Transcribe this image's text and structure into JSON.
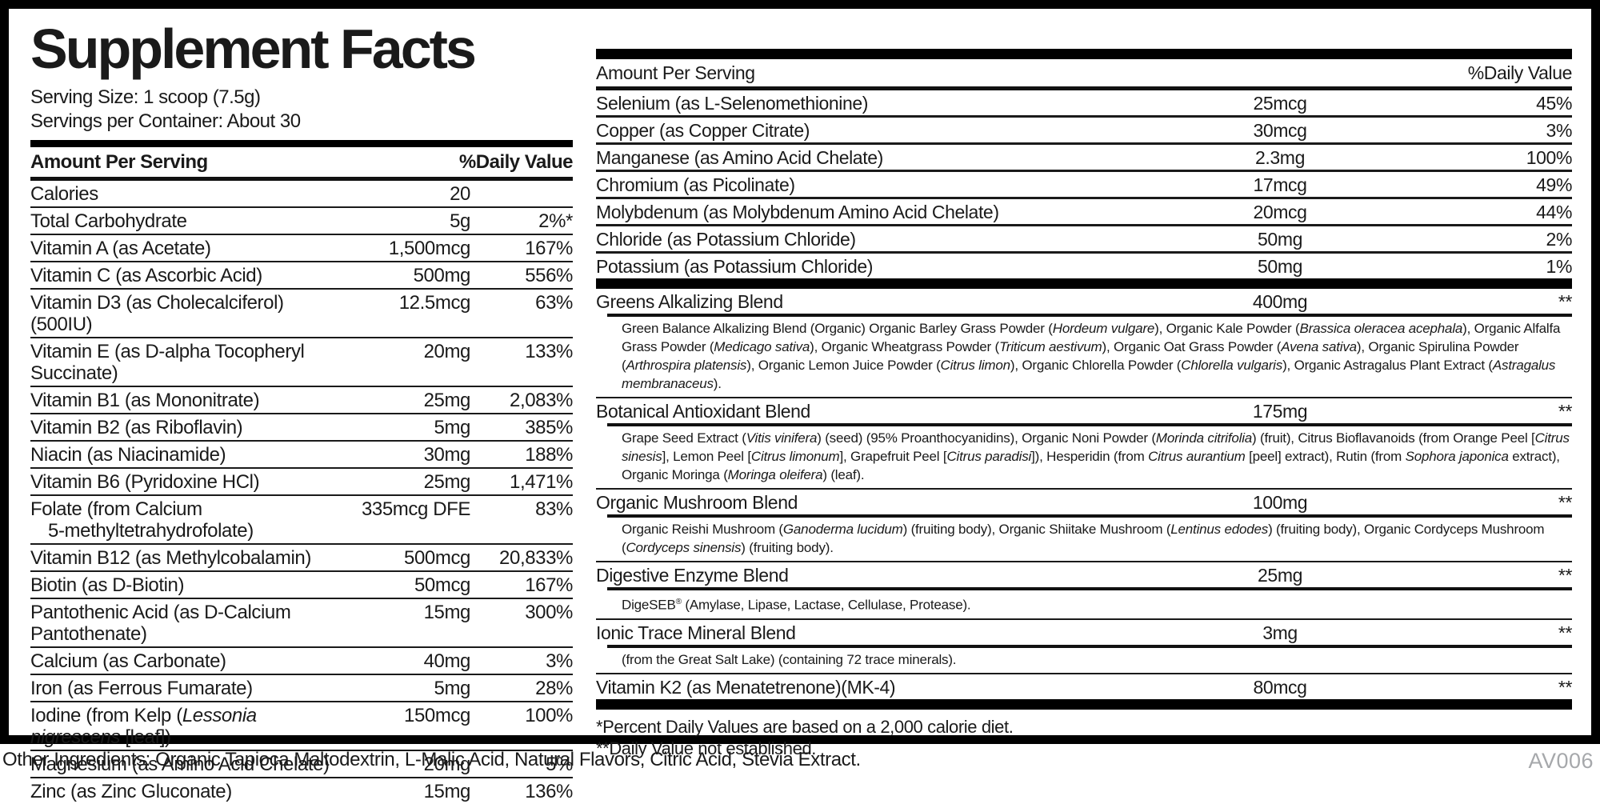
{
  "colors": {
    "ink": "#1a1a1a",
    "bar": "#000000",
    "code_gray": "#a6a8ab"
  },
  "label": {
    "title": "Supplement Facts",
    "serving_size": "Serving Size: 1 scoop (7.5g)",
    "servings_per_container": "Servings per Container: About 30",
    "header_amount": "Amount Per Serving",
    "header_dv": "%Daily Value"
  },
  "left_table": {
    "rows": [
      {
        "name": "Calories",
        "amount": "20",
        "dv": ""
      },
      {
        "name": "Total Carbohydrate",
        "amount": "5g",
        "dv": "2%*"
      },
      {
        "name": "Vitamin A (as Acetate)",
        "amount": "1,500mcg",
        "dv": "167%"
      },
      {
        "name": "Vitamin C (as Ascorbic Acid)",
        "amount": "500mg",
        "dv": "556%"
      },
      {
        "name": "Vitamin D3 (as Cholecalciferol)(500IU)",
        "amount": "12.5mcg",
        "dv": "63%"
      },
      {
        "name": "Vitamin E (as D-alpha Tocopheryl Succinate)",
        "amount": "20mg",
        "dv": "133%"
      },
      {
        "name": "Vitamin B1 (as Mononitrate)",
        "amount": "25mg",
        "dv": "2,083%"
      },
      {
        "name": "Vitamin B2 (as Riboflavin)",
        "amount": "5mg",
        "dv": "385%"
      },
      {
        "name": "Niacin (as Niacinamide)",
        "amount": "30mg",
        "dv": "188%"
      },
      {
        "name": "Vitamin B6 (Pyridoxine HCl)",
        "amount": "25mg",
        "dv": "1,471%"
      },
      {
        "name": "Folate (from Calcium",
        "name2": "5-methyltetrahydrofolate)",
        "amount": "335mcg DFE",
        "dv": "83%"
      },
      {
        "name": "Vitamin B12 (as Methylcobalamin)",
        "amount": "500mcg",
        "dv": "20,833%"
      },
      {
        "name": "Biotin (as D-Biotin)",
        "amount": "50mcg",
        "dv": "167%"
      },
      {
        "name": "Pantothenic Acid (as D-Calcium Pantothenate)",
        "amount": "15mg",
        "dv": "300%"
      },
      {
        "name": "Calcium (as Carbonate)",
        "amount": "40mg",
        "dv": "3%"
      },
      {
        "name": "Iron (as Ferrous Fumarate)",
        "amount": "5mg",
        "dv": "28%"
      },
      {
        "name_rich": [
          [
            "Iodine (from Kelp (",
            0
          ],
          [
            "Lessonia nigrescens",
            1
          ],
          [
            " [leaf])",
            0
          ]
        ],
        "amount": "150mcg",
        "dv": "100%"
      },
      {
        "name": "Magnesium (as Amino Acid Chelate)",
        "amount": "20mg",
        "dv": "5%"
      },
      {
        "name": "Zinc (as Zinc Gluconate)",
        "amount": "15mg",
        "dv": "136%"
      }
    ]
  },
  "right_table": {
    "mineral_rows": [
      {
        "name": "Selenium (as L-Selenomethionine)",
        "amount": "25mcg",
        "dv": "45%"
      },
      {
        "name": "Copper (as Copper Citrate)",
        "amount": "30mcg",
        "dv": "3%"
      },
      {
        "name": "Manganese (as Amino Acid Chelate)",
        "amount": "2.3mg",
        "dv": "100%"
      },
      {
        "name": "Chromium (as Picolinate)",
        "amount": "17mcg",
        "dv": "49%"
      },
      {
        "name": "Molybdenum (as Molybdenum Amino Acid Chelate)",
        "amount": "20mcg",
        "dv": "44%"
      },
      {
        "name": "Chloride (as Potassium Chloride)",
        "amount": "50mg",
        "dv": "2%"
      },
      {
        "name": "Potassium (as Potassium Chloride)",
        "amount": "50mg",
        "dv": "1%"
      }
    ],
    "blends": [
      {
        "name": "Greens Alkalizing Blend",
        "amount": "400mg",
        "dv": "**",
        "desc": [
          [
            "Green Balance Alkalizing Blend (Organic) Organic Barley Grass Powder (",
            0
          ],
          [
            "Hordeum vulgare",
            1
          ],
          [
            "), Organic Kale Powder (",
            0
          ],
          [
            "Brassica oleracea acephala",
            1
          ],
          [
            "), Organic Alfalfa Grass Powder (",
            0
          ],
          [
            "Medicago sativa",
            1
          ],
          [
            "), Organic Wheatgrass Powder (",
            0
          ],
          [
            "Triticum aestivum",
            1
          ],
          [
            "), Organic Oat Grass Powder (",
            0
          ],
          [
            "Avena sativa",
            1
          ],
          [
            "), Organic Spirulina Powder (",
            0
          ],
          [
            "Arthrospira platensis",
            1
          ],
          [
            "), Organic Lemon Juice Powder (",
            0
          ],
          [
            "Citrus limon",
            1
          ],
          [
            "), Organic Chlorella Powder (",
            0
          ],
          [
            "Chlorella vulgaris",
            1
          ],
          [
            "), Organic Astragalus Plant Extract (",
            0
          ],
          [
            "Astragalus membranaceus",
            1
          ],
          [
            ").",
            0
          ]
        ]
      },
      {
        "name": "Botanical Antioxidant Blend",
        "amount": "175mg",
        "dv": "**",
        "desc": [
          [
            "Grape Seed Extract (",
            0
          ],
          [
            "Vitis vinifera",
            1
          ],
          [
            ") (seed) (95% Proanthocyanidins), Organic Noni Powder (",
            0
          ],
          [
            "Morinda citrifolia",
            1
          ],
          [
            ") (fruit), Citrus Bioflavanoids (from Orange Peel [",
            0
          ],
          [
            "Citrus sinesis",
            1
          ],
          [
            "], Lemon Peel [",
            0
          ],
          [
            "Citrus limonum",
            1
          ],
          [
            "], Grapefruit Peel [",
            0
          ],
          [
            "Citrus paradisi",
            1
          ],
          [
            "]), Hesperidin (from ",
            0
          ],
          [
            "Citrus aurantium",
            1
          ],
          [
            " [peel] extract), Rutin (from ",
            0
          ],
          [
            "Sophora japonica",
            1
          ],
          [
            " extract), Organic Moringa (",
            0
          ],
          [
            "Moringa oleifera",
            1
          ],
          [
            ") (leaf).",
            0
          ]
        ]
      },
      {
        "name": "Organic Mushroom Blend",
        "amount": "100mg",
        "dv": "**",
        "desc": [
          [
            "Organic Reishi Mushroom (",
            0
          ],
          [
            "Ganoderma lucidum",
            1
          ],
          [
            ") (fruiting body), Organic Shiitake Mushroom (",
            0
          ],
          [
            "Lentinus edodes",
            1
          ],
          [
            ") (fruiting body), Organic Cordyceps Mushroom (",
            0
          ],
          [
            "Cordyceps sinensis",
            1
          ],
          [
            ") (fruiting body).",
            0
          ]
        ]
      },
      {
        "name": "Digestive Enzyme Blend",
        "amount": "25mg",
        "dv": "**",
        "desc": [
          [
            "DigeSEB",
            0
          ],
          [
            "®",
            2
          ],
          [
            " (Amylase, Lipase, Lactase, Cellulase, Protease).",
            0
          ]
        ]
      },
      {
        "name": "Ionic Trace Mineral Blend",
        "amount": "3mg",
        "dv": "**",
        "desc": [
          [
            "(from the Great Salt Lake) (containing 72 trace minerals).",
            0
          ]
        ]
      },
      {
        "name": "Vitamin K2 (as Menatetrenone)(MK-4)",
        "amount": "80mcg",
        "dv": "**",
        "desc": null
      }
    ],
    "footnotes": [
      "*Percent Daily Values are based on a 2,000 calorie diet.",
      "**Daily Value not established."
    ]
  },
  "bottom": {
    "other_ingredients": "Other Ingredients: Organic Tapioca Maltodextrin, L-Malic Acid, Natural Flavors, Citric Acid, Stevia Extract.",
    "code": "AV006"
  }
}
